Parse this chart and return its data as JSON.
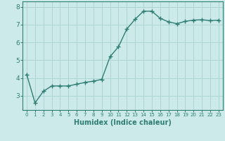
{
  "x": [
    0,
    1,
    2,
    3,
    4,
    5,
    6,
    7,
    8,
    9,
    10,
    11,
    12,
    13,
    14,
    15,
    16,
    17,
    18,
    19,
    20,
    21,
    22,
    23
  ],
  "y": [
    4.2,
    2.6,
    3.25,
    3.55,
    3.55,
    3.55,
    3.65,
    3.75,
    3.82,
    3.92,
    5.2,
    5.75,
    6.75,
    7.3,
    7.75,
    7.75,
    7.35,
    7.15,
    7.05,
    7.18,
    7.25,
    7.27,
    7.22,
    7.25
  ],
  "line_color": "#2e7d72",
  "marker": "+",
  "markersize": 4,
  "linewidth": 1.0,
  "bg_color": "#cdeaea",
  "grid_color": "#aed4d4",
  "xlabel": "Humidex (Indice chaleur)",
  "xlabel_fontsize": 7,
  "xlabel_color": "#2e7d72",
  "tick_color": "#2e7d72",
  "ylim": [
    2.2,
    8.3
  ],
  "xlim": [
    -0.5,
    23.5
  ],
  "yticks": [
    3,
    4,
    5,
    6,
    7,
    8
  ],
  "xtick_labels": [
    "0",
    "1",
    "2",
    "3",
    "4",
    "5",
    "6",
    "7",
    "8",
    "9",
    "10",
    "11",
    "12",
    "13",
    "14",
    "15",
    "16",
    "17",
    "18",
    "19",
    "20",
    "21",
    "22",
    "23"
  ]
}
